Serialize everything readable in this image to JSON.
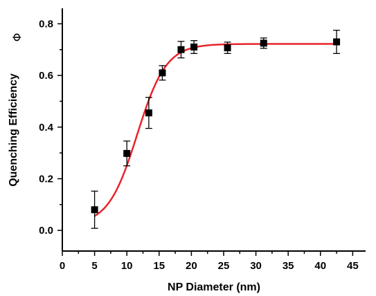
{
  "chart_data": {
    "type": "scatter",
    "xlabel": "NP Diameter (nm)",
    "ylabel": "Quenching Efficiency",
    "ylabel_symbol": "Φ",
    "xlim": [
      0,
      47
    ],
    "ylim": [
      -0.08,
      0.86
    ],
    "x_ticks": [
      0,
      5,
      10,
      15,
      20,
      25,
      30,
      35,
      40,
      45
    ],
    "x_tick_labels": [
      "0",
      "5",
      "10",
      "15",
      "20",
      "25",
      "30",
      "35",
      "40",
      "45"
    ],
    "y_ticks": [
      0.0,
      0.2,
      0.4,
      0.6,
      0.8
    ],
    "y_tick_labels": [
      "0.0",
      "0.2",
      "0.4",
      "0.6",
      "0.8"
    ],
    "grid": false,
    "series": [
      {
        "kind": "points",
        "marker": "square",
        "color": "#000000",
        "points": [
          {
            "x": 5.0,
            "y": 0.08,
            "err": 0.072
          },
          {
            "x": 10.0,
            "y": 0.298,
            "err": 0.048
          },
          {
            "x": 13.4,
            "y": 0.455,
            "err": 0.06
          },
          {
            "x": 15.5,
            "y": 0.61,
            "err": 0.028
          },
          {
            "x": 18.4,
            "y": 0.7,
            "err": 0.032
          },
          {
            "x": 20.4,
            "y": 0.71,
            "err": 0.025
          },
          {
            "x": 25.6,
            "y": 0.707,
            "err": 0.022
          },
          {
            "x": 31.2,
            "y": 0.725,
            "err": 0.02
          },
          {
            "x": 42.5,
            "y": 0.73,
            "err": 0.045
          }
        ]
      },
      {
        "kind": "fit",
        "color": "#e8232b",
        "model": "logistic",
        "x_range": [
          5.0,
          42.5
        ],
        "params": {
          "bottom": 0.02,
          "top": 0.722,
          "x0": 11.6,
          "width": 2.25
        }
      }
    ]
  }
}
